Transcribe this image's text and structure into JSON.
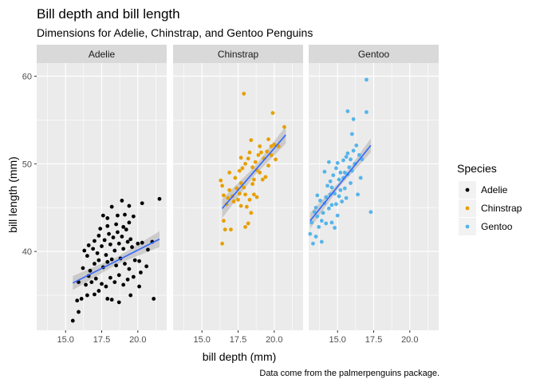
{
  "chart_data": {
    "type": "scatter",
    "title": "Bill depth and bill length",
    "subtitle": "Dimensions for Adelie, Chinstrap, and Gentoo Penguins",
    "caption": "Data come from the palmerpenguins package.",
    "xlabel": "bill depth (mm)",
    "ylabel": "bill length (mm)",
    "xlim": [
      13.0,
      22.0
    ],
    "ylim": [
      31.0,
      61.5
    ],
    "xticks": [
      15.0,
      17.5,
      20.0
    ],
    "xtick_labels": [
      "15.0",
      "17.5",
      "20.0"
    ],
    "yticks": [
      40,
      50,
      60
    ],
    "ytick_labels": [
      "40",
      "50",
      "60"
    ],
    "grid": true,
    "facet_by": "species",
    "legend": {
      "title": "Species",
      "position": "right",
      "entries": [
        {
          "label": "Adelie",
          "color": "#000000"
        },
        {
          "label": "Chinstrap",
          "color": "#E69F00"
        },
        {
          "label": "Gentoo",
          "color": "#56B4E9"
        }
      ]
    },
    "trend_color": "#3366FF",
    "band_color": "#999999",
    "panels": [
      {
        "name": "Adelie",
        "color": "#000000",
        "trend": {
          "x": [
            15.5,
            21.5
          ],
          "y": [
            36.4,
            41.4
          ]
        },
        "band_halfwidth": [
          0.8,
          0.4,
          0.9
        ],
        "points": [
          [
            15.5,
            32.1
          ],
          [
            15.9,
            33.1
          ],
          [
            15.8,
            34.4
          ],
          [
            16.1,
            34.6
          ],
          [
            16.5,
            35.0
          ],
          [
            17.0,
            35.1
          ],
          [
            17.9,
            34.6
          ],
          [
            17.3,
            35.5
          ],
          [
            18.2,
            34.5
          ],
          [
            18.7,
            34.2
          ],
          [
            19.5,
            35.0
          ],
          [
            21.1,
            34.6
          ],
          [
            20.1,
            36.0
          ],
          [
            15.9,
            36.5
          ],
          [
            16.4,
            36.2
          ],
          [
            16.6,
            37.2
          ],
          [
            16.8,
            36.5
          ],
          [
            17.1,
            36.9
          ],
          [
            17.5,
            36.3
          ],
          [
            17.8,
            36.0
          ],
          [
            18.1,
            37.0
          ],
          [
            18.4,
            36.5
          ],
          [
            18.7,
            37.3
          ],
          [
            19.0,
            36.2
          ],
          [
            19.3,
            36.8
          ],
          [
            19.7,
            37.1
          ],
          [
            20.2,
            37.6
          ],
          [
            20.6,
            38.3
          ],
          [
            16.2,
            38.1
          ],
          [
            16.7,
            37.8
          ],
          [
            17.0,
            38.6
          ],
          [
            17.3,
            39.0
          ],
          [
            17.6,
            38.2
          ],
          [
            17.9,
            38.8
          ],
          [
            18.2,
            39.1
          ],
          [
            18.5,
            38.4
          ],
          [
            18.8,
            39.2
          ],
          [
            19.1,
            38.6
          ],
          [
            19.4,
            38.0
          ],
          [
            19.8,
            39.0
          ],
          [
            20.1,
            38.9
          ],
          [
            20.7,
            40.2
          ],
          [
            16.5,
            39.5
          ],
          [
            16.9,
            40.3
          ],
          [
            17.2,
            39.8
          ],
          [
            17.5,
            40.6
          ],
          [
            17.8,
            39.6
          ],
          [
            18.1,
            40.8
          ],
          [
            18.4,
            40.1
          ],
          [
            18.7,
            40.9
          ],
          [
            19.0,
            40.3
          ],
          [
            19.3,
            41.1
          ],
          [
            19.6,
            40.5
          ],
          [
            20.0,
            40.9
          ],
          [
            17.0,
            41.2
          ],
          [
            17.3,
            41.8
          ],
          [
            17.7,
            41.3
          ],
          [
            18.0,
            42.0
          ],
          [
            18.3,
            41.6
          ],
          [
            18.6,
            42.2
          ],
          [
            18.9,
            41.7
          ],
          [
            19.2,
            42.5
          ],
          [
            19.5,
            41.4
          ],
          [
            20.3,
            41.0
          ],
          [
            21.0,
            41.1
          ],
          [
            17.4,
            42.6
          ],
          [
            17.9,
            42.9
          ],
          [
            18.5,
            43.1
          ],
          [
            19.0,
            42.8
          ],
          [
            19.4,
            43.3
          ],
          [
            17.9,
            43.8
          ],
          [
            18.6,
            44.1
          ],
          [
            19.1,
            44.2
          ],
          [
            19.7,
            44.0
          ],
          [
            18.2,
            45.1
          ],
          [
            18.9,
            45.8
          ],
          [
            20.3,
            45.5
          ],
          [
            21.5,
            46.0
          ],
          [
            19.4,
            45.2
          ],
          [
            17.6,
            44.1
          ],
          [
            16.3,
            40.1
          ],
          [
            16.6,
            40.7
          ]
        ]
      },
      {
        "name": "Chinstrap",
        "color": "#E69F00",
        "trend": {
          "x": [
            16.4,
            20.8
          ],
          "y": [
            44.9,
            53.3
          ]
        },
        "band_halfwidth": [
          1.1,
          0.5,
          1.0
        ],
        "points": [
          [
            16.4,
            40.9
          ],
          [
            16.6,
            42.5
          ],
          [
            17.0,
            42.5
          ],
          [
            16.5,
            43.5
          ],
          [
            16.7,
            45.4
          ],
          [
            16.5,
            46.4
          ],
          [
            16.4,
            47.5
          ],
          [
            16.3,
            48.1
          ],
          [
            16.8,
            46.1
          ],
          [
            16.9,
            47.0
          ],
          [
            17.1,
            46.3
          ],
          [
            17.2,
            45.7
          ],
          [
            17.4,
            47.2
          ],
          [
            17.5,
            45.9
          ],
          [
            17.6,
            46.6
          ],
          [
            17.7,
            45.2
          ],
          [
            17.9,
            47.3
          ],
          [
            18.0,
            46.5
          ],
          [
            18.1,
            45.1
          ],
          [
            18.3,
            45.9
          ],
          [
            18.4,
            44.4
          ],
          [
            18.6,
            46.5
          ],
          [
            18.8,
            46.2
          ],
          [
            18.2,
            43.2
          ],
          [
            18.0,
            42.8
          ],
          [
            17.7,
            47.8
          ],
          [
            17.6,
            49.2
          ],
          [
            17.8,
            49.5
          ],
          [
            17.7,
            50.7
          ],
          [
            18.0,
            50.0
          ],
          [
            18.2,
            50.6
          ],
          [
            18.3,
            51.3
          ],
          [
            18.5,
            49.6
          ],
          [
            18.7,
            50.2
          ],
          [
            18.9,
            51.0
          ],
          [
            19.1,
            51.3
          ],
          [
            19.3,
            50.6
          ],
          [
            19.5,
            51.4
          ],
          [
            19.6,
            49.8
          ],
          [
            19.8,
            52.0
          ],
          [
            18.4,
            52.7
          ],
          [
            19.0,
            52.0
          ],
          [
            19.6,
            52.8
          ],
          [
            20.0,
            52.2
          ],
          [
            20.7,
            54.2
          ],
          [
            20.3,
            52.0
          ],
          [
            19.9,
            55.8
          ],
          [
            17.9,
            58.0
          ],
          [
            19.0,
            49.0
          ],
          [
            19.4,
            48.5
          ],
          [
            18.6,
            48.2
          ],
          [
            17.3,
            48.4
          ],
          [
            16.9,
            49.0
          ],
          [
            18.5,
            47.7
          ],
          [
            19.8,
            51.0
          ],
          [
            20.1,
            50.5
          ],
          [
            19.2,
            48.2
          ],
          [
            18.8,
            49.3
          ]
        ]
      },
      {
        "name": "Gentoo",
        "color": "#56B4E9",
        "trend": {
          "x": [
            13.1,
            17.3
          ],
          "y": [
            43.5,
            52.1
          ]
        },
        "band_halfwidth": [
          0.9,
          0.3,
          0.8
        ],
        "points": [
          [
            13.1,
            42.0
          ],
          [
            13.3,
            40.9
          ],
          [
            13.5,
            41.7
          ],
          [
            13.2,
            43.3
          ],
          [
            13.4,
            44.5
          ],
          [
            13.5,
            45.0
          ],
          [
            13.6,
            44.0
          ],
          [
            13.7,
            42.8
          ],
          [
            13.9,
            43.5
          ],
          [
            14.0,
            44.4
          ],
          [
            13.8,
            45.8
          ],
          [
            14.1,
            45.5
          ],
          [
            14.2,
            46.2
          ],
          [
            14.4,
            44.9
          ],
          [
            14.5,
            46.5
          ],
          [
            14.6,
            45.3
          ],
          [
            14.3,
            47.5
          ],
          [
            14.5,
            48.0
          ],
          [
            14.6,
            47.3
          ],
          [
            14.8,
            46.6
          ],
          [
            14.9,
            45.4
          ],
          [
            15.0,
            44.1
          ],
          [
            15.1,
            46.3
          ],
          [
            15.2,
            47.0
          ],
          [
            15.3,
            45.7
          ],
          [
            15.4,
            48.4
          ],
          [
            15.5,
            47.2
          ],
          [
            15.6,
            46.1
          ],
          [
            15.7,
            48.8
          ],
          [
            15.8,
            49.6
          ],
          [
            15.9,
            47.8
          ],
          [
            16.0,
            49.2
          ],
          [
            14.7,
            48.7
          ],
          [
            14.9,
            49.5
          ],
          [
            15.0,
            50.1
          ],
          [
            15.2,
            49.0
          ],
          [
            15.4,
            50.4
          ],
          [
            15.6,
            50.8
          ],
          [
            15.7,
            51.2
          ],
          [
            15.9,
            50.5
          ],
          [
            16.1,
            51.5
          ],
          [
            16.2,
            50.0
          ],
          [
            16.3,
            52.1
          ],
          [
            16.5,
            51.0
          ],
          [
            16.7,
            50.5
          ],
          [
            16.0,
            53.4
          ],
          [
            16.1,
            55.1
          ],
          [
            15.7,
            56.0
          ],
          [
            17.0,
            55.9
          ],
          [
            17.0,
            59.6
          ],
          [
            17.3,
            44.5
          ],
          [
            16.4,
            46.5
          ],
          [
            14.1,
            49.1
          ],
          [
            14.4,
            50.2
          ],
          [
            13.6,
            46.4
          ],
          [
            14.2,
            43.2
          ],
          [
            14.8,
            42.7
          ],
          [
            13.9,
            41.1
          ],
          [
            15.1,
            48.2
          ],
          [
            15.5,
            49.0
          ],
          [
            16.6,
            48.4
          ],
          [
            14.6,
            43.3
          ]
        ]
      }
    ]
  }
}
